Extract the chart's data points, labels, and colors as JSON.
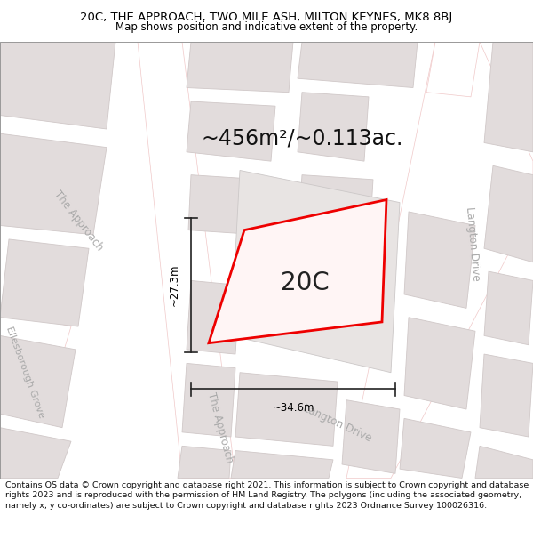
{
  "title": "20C, THE APPROACH, TWO MILE ASH, MILTON KEYNES, MK8 8BJ",
  "subtitle": "Map shows position and indicative extent of the property.",
  "area_text": "~456m²/~0.113ac.",
  "plot_label": "20C",
  "dim_width": "~34.6m",
  "dim_height": "~27.3m",
  "footer": "Contains OS data © Crown copyright and database right 2021. This information is subject to Crown copyright and database rights 2023 and is reproduced with the permission of HM Land Registry. The polygons (including the associated geometry, namely x, y co-ordinates) are subject to Crown copyright and database rights 2023 Ordnance Survey 100026316.",
  "map_bg": "#f2eeee",
  "road_fill": "#ffffff",
  "road_edge": "#f0c8c8",
  "bld_fill": "#e2dcdc",
  "bld_edge": "#d0c8c8",
  "plot_edge": "#ee0000",
  "plot_fill": "#fff5f5",
  "dim_color": "#222222",
  "road_label_color": "#aaaaaa",
  "fig_width": 6.0,
  "fig_height": 6.25,
  "title_fontsize": 9.5,
  "subtitle_fontsize": 8.5,
  "area_fontsize": 17,
  "label_fontsize": 20,
  "footer_fontsize": 6.8,
  "dim_fontsize": 8.5,
  "road_label_fontsize": 8.5
}
